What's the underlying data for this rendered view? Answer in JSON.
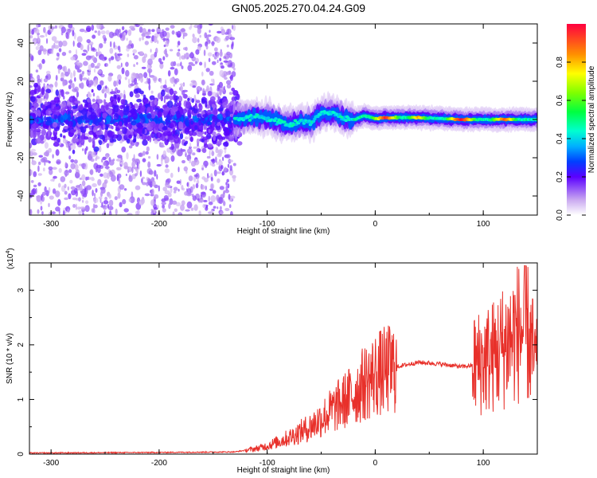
{
  "title": "GN05.2025.270.04.24.G09",
  "chart_data": [
    {
      "type": "heatmap",
      "xlabel": "Height of straight line (km)",
      "ylabel": "Frequency (Hz)",
      "xlim": [
        -320,
        150
      ],
      "ylim": [
        -50,
        50
      ],
      "xticks": [
        -300,
        -200,
        -100,
        0,
        100
      ],
      "yticks": [
        -40,
        -20,
        0,
        20,
        40
      ],
      "colorbar": {
        "label": "Normalized spectral amplitude",
        "range": [
          0,
          1
        ],
        "ticks": [
          "0.0",
          "0.2",
          "0.4",
          "0.6",
          "0.8"
        ]
      },
      "ridge": {
        "description_points_km_hz": [
          [
            -320,
            0
          ],
          [
            -130,
            0
          ],
          [
            -110,
            2
          ],
          [
            -90,
            -1
          ],
          [
            -80,
            -3
          ],
          [
            -70,
            -1
          ],
          [
            -60,
            -2
          ],
          [
            -50,
            3
          ],
          [
            -40,
            4
          ],
          [
            -30,
            1
          ],
          [
            -20,
            0
          ],
          [
            -10,
            2
          ],
          [
            0,
            0.5
          ],
          [
            10,
            1
          ],
          [
            40,
            1
          ],
          [
            80,
            0
          ],
          [
            120,
            0
          ],
          [
            150,
            0
          ]
        ],
        "peak_amplitude_km": [
          [
            10,
            0.95
          ],
          [
            40,
            0.8
          ],
          [
            80,
            1.0
          ],
          [
            120,
            0.9
          ]
        ]
      }
    },
    {
      "type": "line",
      "xlabel": "Height of straight line (km)",
      "ylabel": "SNR (10 * v/v)",
      "yscale_label": "(x10",
      "yscale_exp": "4",
      "yscale_close": ")",
      "xlim": [
        -320,
        150
      ],
      "ylim": [
        0,
        3.5
      ],
      "xticks": [
        -300,
        -200,
        -100,
        0,
        100
      ],
      "yticks": [
        0,
        1,
        2,
        3
      ],
      "series_color": "#e8302a",
      "trend_km_snr": [
        [
          -320,
          0.02
        ],
        [
          -200,
          0.03
        ],
        [
          -130,
          0.04
        ],
        [
          -110,
          0.1
        ],
        [
          -100,
          0.15
        ],
        [
          -80,
          0.3
        ],
        [
          -60,
          0.5
        ],
        [
          -40,
          0.8
        ],
        [
          -20,
          1.1
        ],
        [
          -10,
          1.3
        ],
        [
          0,
          1.45
        ],
        [
          20,
          1.6
        ],
        [
          40,
          1.68
        ],
        [
          60,
          1.65
        ],
        [
          80,
          1.6
        ],
        [
          90,
          1.62
        ],
        [
          100,
          1.7
        ],
        [
          110,
          1.8
        ],
        [
          120,
          2.0
        ],
        [
          130,
          2.2
        ],
        [
          140,
          2.3
        ],
        [
          150,
          1.5
        ]
      ]
    }
  ]
}
